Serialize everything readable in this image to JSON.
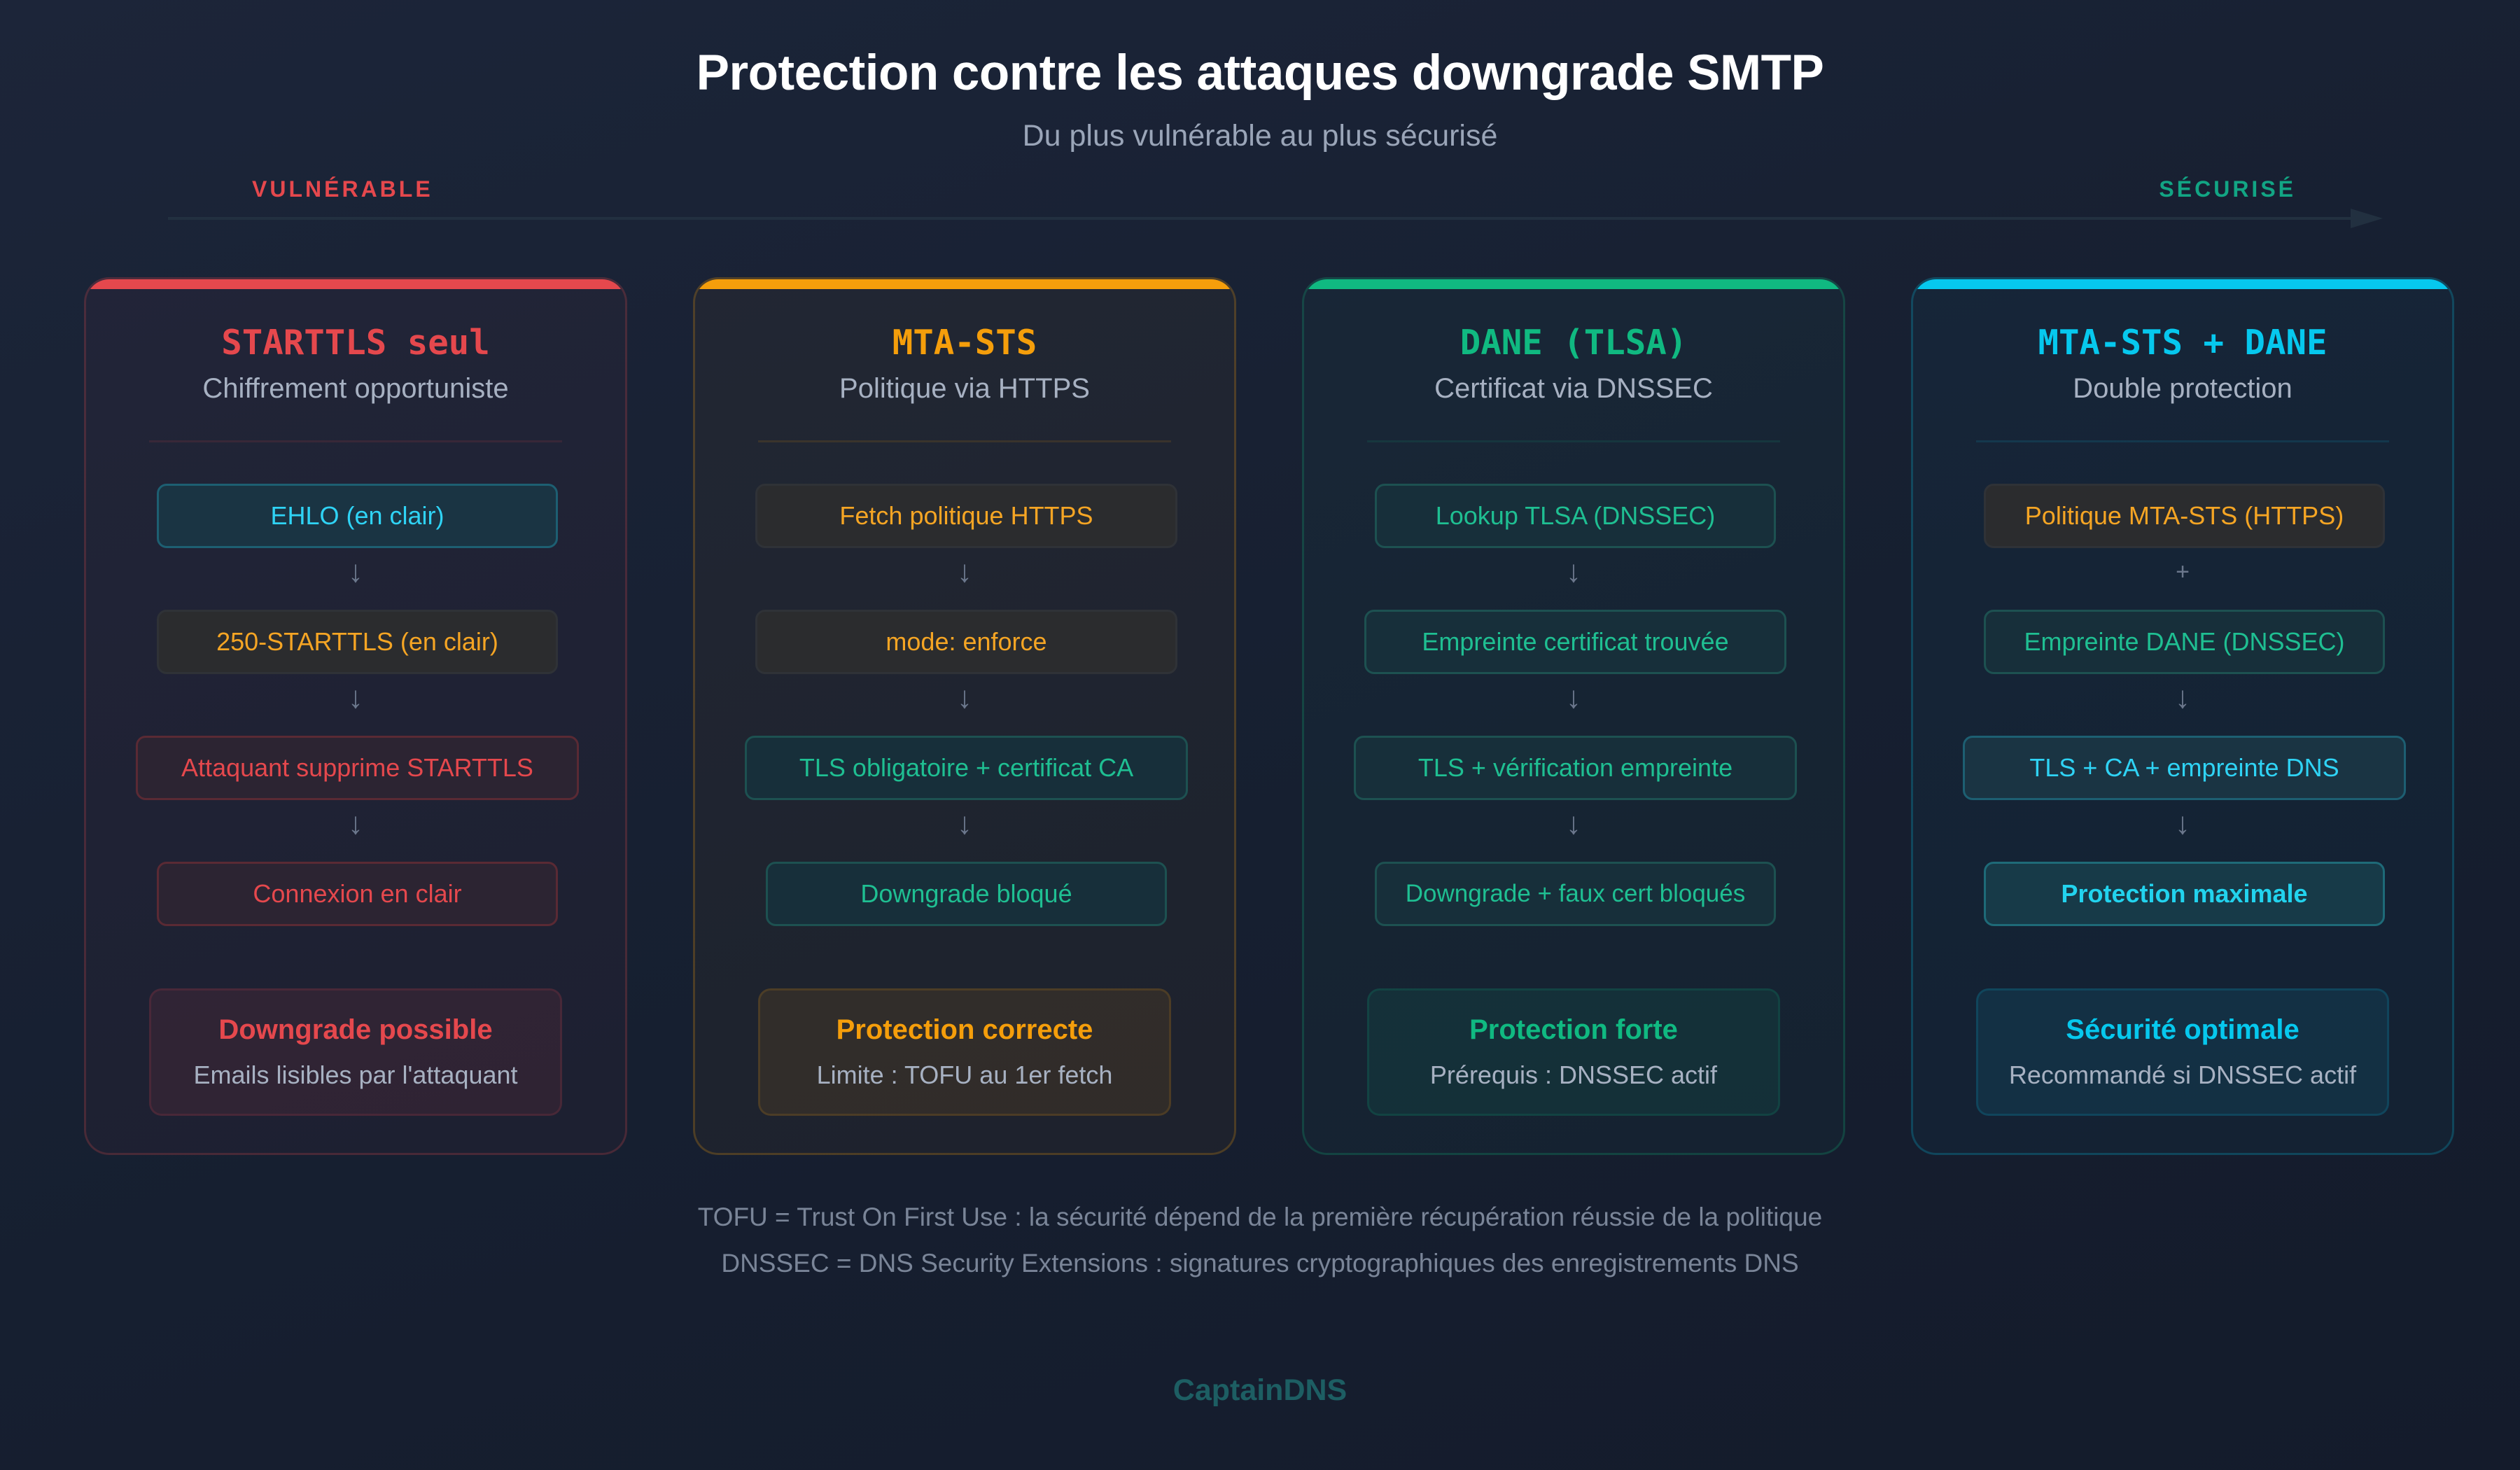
{
  "header": {
    "title": "Protection contre les attaques downgrade SMTP",
    "subtitle": "Du plus vulnérable au plus sécurisé"
  },
  "scale": {
    "left_label": "VULNÉRABLE",
    "right_label": "SÉCURISÉ",
    "left_color": "#e5484d",
    "right_color": "#12a584"
  },
  "cards": [
    {
      "title": "STARTTLS seul",
      "subtitle": "Chiffrement opportuniste",
      "accent": "#e5484d",
      "steps": [
        {
          "label": "EHLO (en clair)",
          "color": "cyan"
        },
        {
          "label": "250-STARTTLS (en clair)",
          "color": "orange"
        },
        {
          "label": "Attaquant supprime STARTTLS",
          "color": "red"
        },
        {
          "label": "Connexion en clair",
          "color": "red"
        }
      ],
      "connectors": [
        "↓",
        "↓",
        "↓"
      ],
      "summary_title": "Downgrade possible",
      "summary_text": "Emails lisibles par l'attaquant"
    },
    {
      "title": "MTA-STS",
      "subtitle": "Politique via HTTPS",
      "accent": "#f59e0b",
      "steps": [
        {
          "label": "Fetch politique HTTPS",
          "color": "orange"
        },
        {
          "label": "mode: enforce",
          "color": "orange"
        },
        {
          "label": "TLS obligatoire + certificat CA",
          "color": "green"
        },
        {
          "label": "Downgrade bloqué",
          "color": "green"
        }
      ],
      "connectors": [
        "↓",
        "↓",
        "↓"
      ],
      "summary_title": "Protection correcte",
      "summary_text": "Limite : TOFU au 1er fetch"
    },
    {
      "title": "DANE (TLSA)",
      "subtitle": "Certificat via DNSSEC",
      "accent": "#10b981",
      "steps": [
        {
          "label": "Lookup TLSA (DNSSEC)",
          "color": "green"
        },
        {
          "label": "Empreinte certificat trouvée",
          "color": "green"
        },
        {
          "label": "TLS + vérification empreinte",
          "color": "green"
        },
        {
          "label": "Downgrade + faux cert bloqués",
          "color": "green"
        }
      ],
      "connectors": [
        "↓",
        "↓",
        "↓"
      ],
      "summary_title": "Protection forte",
      "summary_text": "Prérequis : DNSSEC actif"
    },
    {
      "title": "MTA-STS + DANE",
      "subtitle": "Double protection",
      "accent": "#06c8ee",
      "steps": [
        {
          "label": "Politique MTA-STS (HTTPS)",
          "color": "orange"
        },
        {
          "label": "Empreinte DANE (DNSSEC)",
          "color": "green"
        },
        {
          "label": "TLS + CA + empreinte DNS",
          "color": "cyan"
        },
        {
          "label": "Protection maximale",
          "color": "cyan-strong"
        }
      ],
      "connectors": [
        "+",
        "↓",
        "↓"
      ],
      "summary_title": "Sécurité optimale",
      "summary_text": "Recommandé si DNSSEC actif"
    }
  ],
  "footnotes": [
    "TOFU = Trust On First Use : la sécurité dépend de la première récupération réussie de la politique",
    "DNSSEC = DNS Security Extensions : signatures cryptographiques des enregistrements DNS"
  ],
  "brand": "CaptainDNS"
}
